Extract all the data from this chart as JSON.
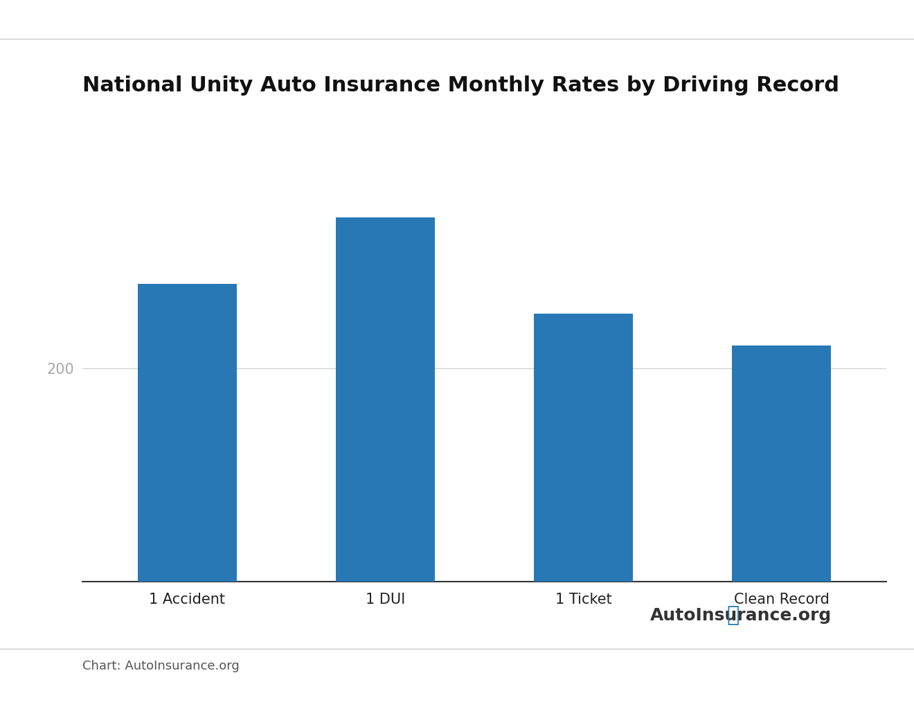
{
  "title": "National Unity Auto Insurance Monthly Rates by Driving Record",
  "categories": [
    "1 Accident",
    "1 DUI",
    "1 Ticket",
    "Clean Record"
  ],
  "values": [
    280,
    342,
    252,
    222
  ],
  "bar_color": "#2878b5",
  "background_color": "#ffffff",
  "ytick_values": [
    200
  ],
  "ytick_color": "#aaaaaa",
  "grid_color": "#cccccc",
  "title_fontsize": 22,
  "tick_fontsize": 15,
  "ytick_fontsize": 15,
  "chart_source": "Chart: AutoInsurance.org",
  "source_fontsize": 13,
  "bar_width": 0.5,
  "ylim": [
    0,
    400
  ],
  "watermark_text": "AutoInsurance.org",
  "watermark_fontsize": 18,
  "separator_color": "#cccccc",
  "separator_linewidth": 1.0
}
